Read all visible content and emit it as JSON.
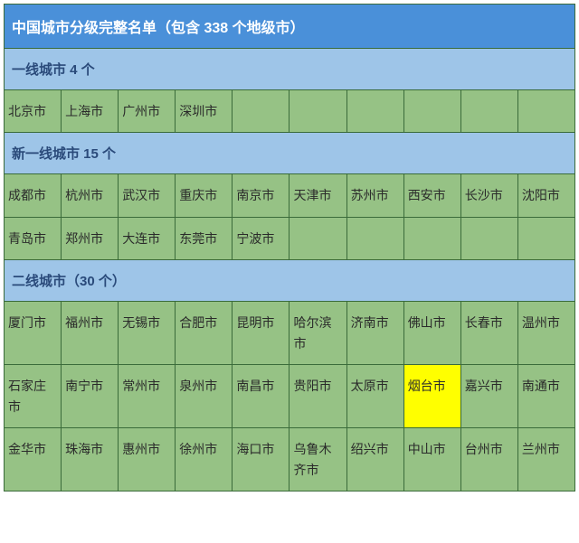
{
  "table": {
    "main_title": "中国城市分级完整名单（包含 338 个地级市）",
    "columns_per_row": 10,
    "colors": {
      "main_title_bg": "#4a90d9",
      "main_title_text": "#ffffff",
      "tier_header_bg": "#9ec5e8",
      "tier_header_text": "#2a4a7a",
      "cell_bg": "#96c285",
      "cell_text": "#2a2a2a",
      "border_color": "#3a6b3a",
      "highlight_bg": "#ffff00"
    },
    "typography": {
      "title_fontsize": 16,
      "header_fontsize": 15,
      "cell_fontsize": 14,
      "font_family": "Microsoft YaHei"
    },
    "tiers": [
      {
        "header": "一线城市 4 个",
        "rows": [
          {
            "tall": false,
            "cells": [
              {
                "text": "北京市",
                "highlighted": false
              },
              {
                "text": "上海市",
                "highlighted": false
              },
              {
                "text": "广州市",
                "highlighted": false
              },
              {
                "text": "深圳市",
                "highlighted": false
              },
              {
                "text": "",
                "highlighted": false
              },
              {
                "text": "",
                "highlighted": false
              },
              {
                "text": "",
                "highlighted": false
              },
              {
                "text": "",
                "highlighted": false
              },
              {
                "text": "",
                "highlighted": false
              },
              {
                "text": "",
                "highlighted": false
              }
            ]
          }
        ]
      },
      {
        "header": "新一线城市 15 个",
        "rows": [
          {
            "tall": false,
            "cells": [
              {
                "text": "成都市",
                "highlighted": false
              },
              {
                "text": "杭州市",
                "highlighted": false
              },
              {
                "text": "武汉市",
                "highlighted": false
              },
              {
                "text": "重庆市",
                "highlighted": false
              },
              {
                "text": "南京市",
                "highlighted": false
              },
              {
                "text": "天津市",
                "highlighted": false
              },
              {
                "text": "苏州市",
                "highlighted": false
              },
              {
                "text": "西安市",
                "highlighted": false
              },
              {
                "text": "长沙市",
                "highlighted": false
              },
              {
                "text": "沈阳市",
                "highlighted": false
              }
            ]
          },
          {
            "tall": false,
            "cells": [
              {
                "text": "青岛市",
                "highlighted": false
              },
              {
                "text": "郑州市",
                "highlighted": false
              },
              {
                "text": "大连市",
                "highlighted": false
              },
              {
                "text": "东莞市",
                "highlighted": false
              },
              {
                "text": "宁波市",
                "highlighted": false
              },
              {
                "text": "",
                "highlighted": false
              },
              {
                "text": "",
                "highlighted": false
              },
              {
                "text": "",
                "highlighted": false
              },
              {
                "text": "",
                "highlighted": false
              },
              {
                "text": "",
                "highlighted": false
              }
            ]
          }
        ]
      },
      {
        "header": "二线城市（30 个）",
        "rows": [
          {
            "tall": true,
            "cells": [
              {
                "text": "厦门市",
                "highlighted": false
              },
              {
                "text": "福州市",
                "highlighted": false
              },
              {
                "text": "无锡市",
                "highlighted": false
              },
              {
                "text": "合肥市",
                "highlighted": false
              },
              {
                "text": "昆明市",
                "highlighted": false
              },
              {
                "text": "哈尔滨市",
                "highlighted": false
              },
              {
                "text": "济南市",
                "highlighted": false
              },
              {
                "text": "佛山市",
                "highlighted": false
              },
              {
                "text": "长春市",
                "highlighted": false
              },
              {
                "text": "温州市",
                "highlighted": false
              }
            ]
          },
          {
            "tall": true,
            "cells": [
              {
                "text": "石家庄市",
                "highlighted": false
              },
              {
                "text": "南宁市",
                "highlighted": false
              },
              {
                "text": "常州市",
                "highlighted": false
              },
              {
                "text": "泉州市",
                "highlighted": false
              },
              {
                "text": "南昌市",
                "highlighted": false
              },
              {
                "text": "贵阳市",
                "highlighted": false
              },
              {
                "text": "太原市",
                "highlighted": false
              },
              {
                "text": "烟台市",
                "highlighted": true
              },
              {
                "text": "嘉兴市",
                "highlighted": false
              },
              {
                "text": "南通市",
                "highlighted": false
              }
            ]
          },
          {
            "tall": true,
            "cells": [
              {
                "text": "金华市",
                "highlighted": false
              },
              {
                "text": "珠海市",
                "highlighted": false
              },
              {
                "text": "惠州市",
                "highlighted": false
              },
              {
                "text": "徐州市",
                "highlighted": false
              },
              {
                "text": "海口市",
                "highlighted": false
              },
              {
                "text": "乌鲁木齐市",
                "highlighted": false
              },
              {
                "text": "绍兴市",
                "highlighted": false
              },
              {
                "text": "中山市",
                "highlighted": false
              },
              {
                "text": "台州市",
                "highlighted": false
              },
              {
                "text": "兰州市",
                "highlighted": false
              }
            ]
          }
        ]
      }
    ]
  }
}
